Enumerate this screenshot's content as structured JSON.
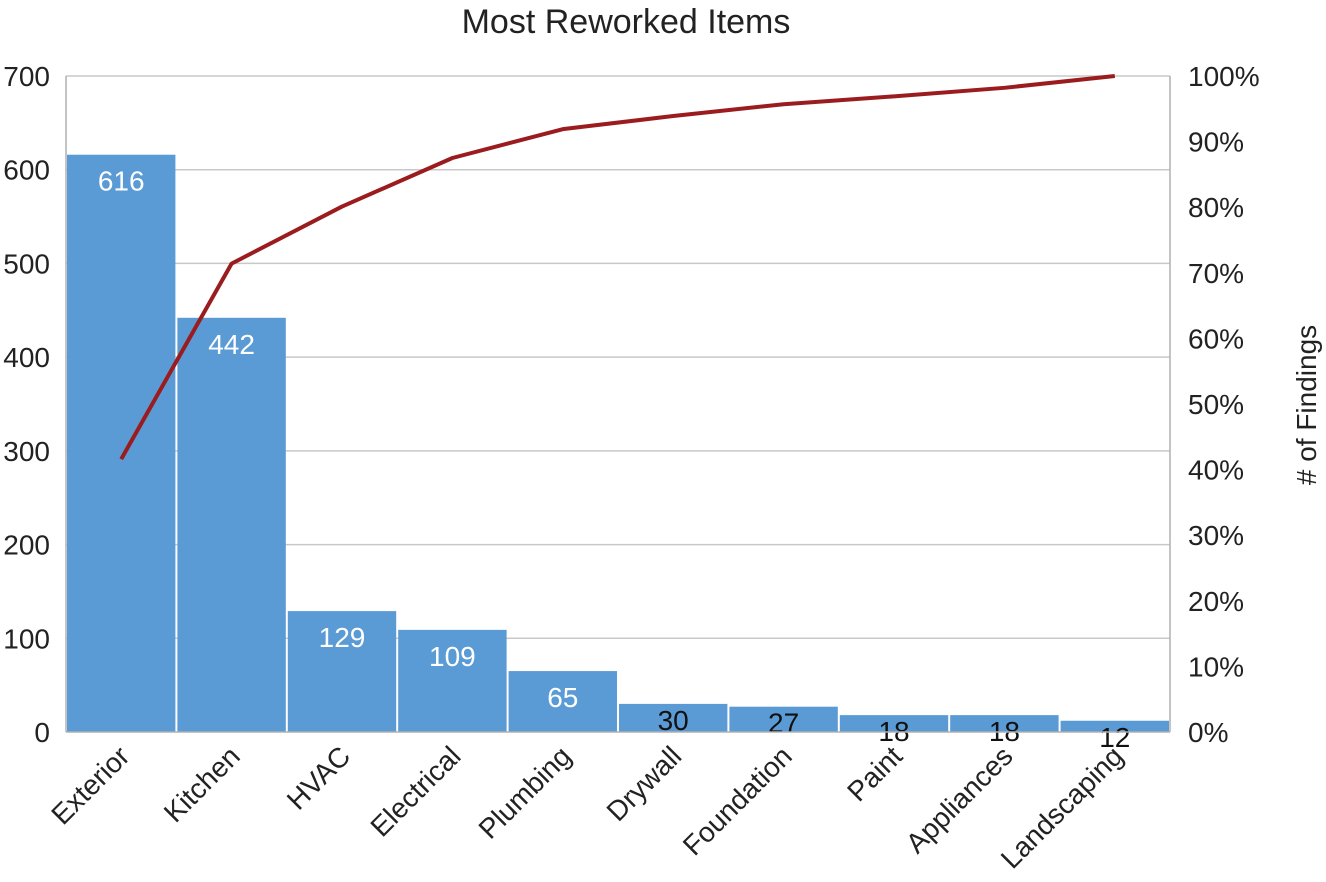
{
  "chart_data": {
    "type": "bar",
    "title": "Most Reworked Items",
    "categories": [
      "Exterior",
      "Kitchen",
      "HVAC",
      "Electrical",
      "Plumbing",
      "Drywall",
      "Foundation",
      "Paint",
      "Appliances",
      "Landscaping"
    ],
    "series": [
      {
        "values": [
          616,
          442,
          129,
          109,
          65,
          30,
          27,
          18,
          18,
          12
        ],
        "type": "bar",
        "axis": "left",
        "color": "#5b9bd5"
      },
      {
        "values": [
          41.6,
          71.4,
          80.1,
          87.5,
          91.9,
          93.9,
          95.7,
          96.9,
          98.2,
          100
        ],
        "type": "line",
        "axis": "right",
        "color": "#9b1c1f"
      }
    ],
    "ylabel": "",
    "y2label": "# of Findings",
    "ylim": [
      0,
      700
    ],
    "yticks": [
      "0",
      "100",
      "200",
      "300",
      "400",
      "500",
      "600",
      "700"
    ],
    "y2lim": [
      0,
      100
    ],
    "y2ticks": [
      "0%",
      "10%",
      "20%",
      "30%",
      "40%",
      "50%",
      "60%",
      "70%",
      "80%",
      "90%",
      "100%"
    ],
    "grid": true,
    "legend": "none",
    "data_labels": [
      "616",
      "442",
      "129",
      "109",
      "65",
      "30",
      "27",
      "18",
      "18",
      "12"
    ]
  }
}
